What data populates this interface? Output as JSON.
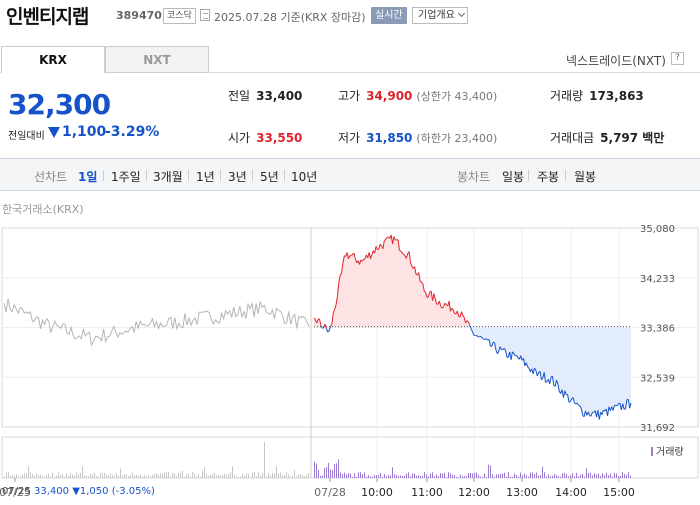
{
  "header": {
    "stock_name": "인벤티지랩",
    "stock_code": "389470",
    "market_badge": "코스닥",
    "date_text": "2025.07.28 기준(KRX 장마감)",
    "live_badge": "실시간",
    "info_button": "기업개요"
  },
  "tabs": {
    "krx": "KRX",
    "nxt": "NXT"
  },
  "nxt_link": "넥스트레이드(NXT)",
  "help_icon": "?",
  "price": {
    "current": "32,300",
    "change_label": "전일대비",
    "change_value": "1,100",
    "change_pct": "-3.29%",
    "direction": "down"
  },
  "stats": {
    "prev_close": {
      "label": "전일",
      "value": "33,400"
    },
    "high": {
      "label": "고가",
      "value": "34,900",
      "sub": "(상한가 43,400)"
    },
    "volume": {
      "label": "거래량",
      "value": "173,863"
    },
    "open": {
      "label": "시가",
      "value": "33,550"
    },
    "low": {
      "label": "저가",
      "value": "31,850",
      "sub": "(하한가 23,400)"
    },
    "amount": {
      "label": "거래대금",
      "value": "5,797 백만"
    }
  },
  "period": {
    "line_label": "선차트",
    "line_items": [
      "1일",
      "1주일",
      "3개월",
      "1년",
      "3년",
      "5년",
      "10년"
    ],
    "active": "1일",
    "candle_label": "봉차트",
    "candle_items": [
      "일봉",
      "주봉",
      "월봉"
    ]
  },
  "exchange_label": "한국거래소(KRX)",
  "volume_legend": "거래량",
  "prev_day_info": {
    "date": "07/25",
    "close": "33,400",
    "change": "▼1,050",
    "pct": "(-3.05%)"
  },
  "colors": {
    "up": "#e0242c",
    "down": "#1652c9",
    "prev_day": "#b5b5b5",
    "volume": "#9b7bd0"
  },
  "chart_data": {
    "type": "line",
    "title": "",
    "ylim": [
      31692,
      35080
    ],
    "y_ticks": [
      "35,080",
      "34,233",
      "33,386",
      "32,539",
      "31,692"
    ],
    "x_ticks": [
      "07/25",
      "07/28",
      "10:00",
      "11:00",
      "12:00",
      "13:00",
      "14:00",
      "15:00"
    ],
    "baseline": 33400,
    "series": [
      {
        "x": [
          "07/25 09:00",
          "07/25 10:00",
          "07/25 11:00",
          "07/25 12:00",
          "07/25 13:00",
          "07/25 14:00",
          "07/25 15:00",
          "07/25 15:30"
        ],
        "values": [
          33800,
          33420,
          33200,
          33380,
          33480,
          33600,
          33720,
          33400
        ]
      },
      {
        "x": [
          "09:00",
          "09:05",
          "09:15",
          "09:30",
          "09:45",
          "10:00",
          "10:15",
          "10:30",
          "10:45",
          "11:00",
          "11:15",
          "11:30",
          "11:45",
          "12:00",
          "12:30",
          "13:00",
          "13:30",
          "14:00",
          "14:30",
          "15:00",
          "15:20"
        ],
        "values": [
          33550,
          33300,
          34650,
          34500,
          34750,
          34900,
          34600,
          34000,
          33800,
          33700,
          33300,
          33100,
          32950,
          32850,
          32600,
          32500,
          32200,
          31950,
          31900,
          32000,
          32100
        ]
      }
    ]
  }
}
